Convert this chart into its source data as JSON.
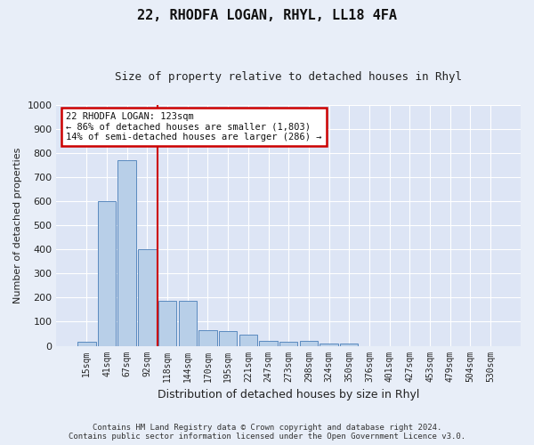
{
  "title": "22, RHODFA LOGAN, RHYL, LL18 4FA",
  "subtitle": "Size of property relative to detached houses in Rhyl",
  "xlabel": "Distribution of detached houses by size in Rhyl",
  "ylabel": "Number of detached properties",
  "footer_line1": "Contains HM Land Registry data © Crown copyright and database right 2024.",
  "footer_line2": "Contains public sector information licensed under the Open Government Licence v3.0.",
  "bar_color": "#b8cfe8",
  "bar_edge_color": "#5a8abf",
  "annotation_line1": "22 RHODFA LOGAN: 123sqm",
  "annotation_line2": "← 86% of detached houses are smaller (1,803)",
  "annotation_line3": "14% of semi-detached houses are larger (286) →",
  "annotation_box_edge_color": "#cc0000",
  "vline_color": "#cc0000",
  "vline_position": 3.5,
  "bg_color": "#e8eef8",
  "plot_bg_color": "#dde5f5",
  "grid_color": "#ffffff",
  "categories": [
    "15sqm",
    "41sqm",
    "67sqm",
    "92sqm",
    "118sqm",
    "144sqm",
    "170sqm",
    "195sqm",
    "221sqm",
    "247sqm",
    "273sqm",
    "298sqm",
    "324sqm",
    "350sqm",
    "376sqm",
    "401sqm",
    "427sqm",
    "453sqm",
    "479sqm",
    "504sqm",
    "530sqm"
  ],
  "values": [
    15,
    600,
    770,
    400,
    185,
    185,
    65,
    60,
    45,
    20,
    18,
    20,
    10,
    10,
    0,
    0,
    0,
    0,
    0,
    0,
    0
  ],
  "ylim": [
    0,
    1000
  ],
  "yticks": [
    0,
    100,
    200,
    300,
    400,
    500,
    600,
    700,
    800,
    900,
    1000
  ]
}
